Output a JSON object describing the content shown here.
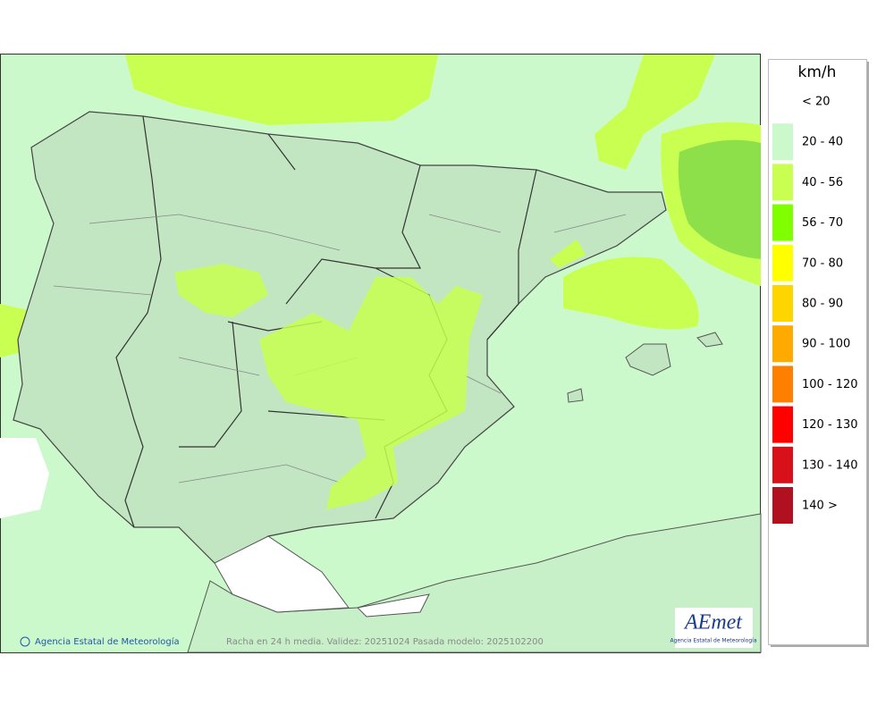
{
  "legend": {
    "title": "km/h",
    "items": [
      {
        "label": "< 20",
        "color": "#ffffff"
      },
      {
        "label": "20 - 40",
        "color": "#ccf9cc"
      },
      {
        "label": "40 - 56",
        "color": "#c8ff50"
      },
      {
        "label": "56 - 70",
        "color": "#80ff00"
      },
      {
        "label": "70 - 80",
        "color": "#ffff00"
      },
      {
        "label": "80 - 90",
        "color": "#ffd500"
      },
      {
        "label": "90 - 100",
        "color": "#ffaa00"
      },
      {
        "label": "100 - 120",
        "color": "#ff8000"
      },
      {
        "label": "120 - 130",
        "color": "#ff0000"
      },
      {
        "label": "130 - 140",
        "color": "#d8101a"
      },
      {
        "label": "140 >",
        "color": "#b01020"
      }
    ]
  },
  "credit": "Agencia Estatal de Meteorología",
  "caption": "Racha en 24 h media. Validez: 20251024 Pasada modelo: 2025102200",
  "logo": {
    "name": "AEmet",
    "subtitle": "Agencia Estatal de Meteorología"
  }
}
